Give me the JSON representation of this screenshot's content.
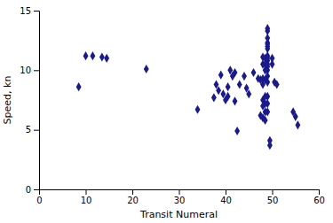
{
  "chart_data": {
    "type": "scatter",
    "xlabel": "Transit Numeral",
    "ylabel": "Speed, kn",
    "xlim": [
      0,
      60
    ],
    "ylim": [
      0,
      15
    ],
    "xticks": [
      0,
      10,
      20,
      30,
      40,
      50,
      60
    ],
    "yticks": [
      0,
      5,
      10,
      15
    ],
    "color": "#1a1a8c",
    "marker": "diamond",
    "grid": false,
    "x": [
      8.5,
      10.0,
      11.5,
      13.5,
      14.5,
      23.0,
      34.0,
      37.5,
      38.0,
      38.5,
      39.0,
      39.5,
      40.0,
      40.5,
      40.5,
      41.0,
      41.5,
      42.0,
      42.0,
      42.5,
      43.0,
      44.0,
      44.5,
      45.0,
      46.0,
      47.0,
      47.5,
      47.5,
      48.0,
      48.0,
      48.0,
      48.0,
      48.0,
      48.0,
      48.0,
      48.5,
      48.5,
      48.5,
      48.5,
      48.5,
      48.5,
      48.5,
      48.5,
      49.0,
      49.0,
      49.0,
      49.0,
      49.0,
      49.0,
      49.0,
      49.0,
      49.0,
      49.0,
      49.0,
      49.0,
      49.0,
      49.0,
      49.0,
      49.0,
      49.0,
      49.0,
      49.5,
      49.5,
      50.0,
      50.0,
      50.5,
      51.0,
      54.5,
      55.0,
      55.5
    ],
    "values": [
      8.6,
      11.2,
      11.2,
      11.1,
      11.0,
      10.1,
      6.7,
      7.7,
      8.8,
      8.3,
      9.6,
      8.0,
      7.5,
      7.8,
      8.6,
      10.0,
      9.5,
      9.8,
      7.4,
      4.9,
      8.8,
      9.5,
      8.5,
      8.0,
      9.8,
      9.3,
      9.2,
      6.2,
      11.1,
      10.5,
      9.3,
      8.8,
      7.5,
      7.0,
      6.0,
      11.0,
      10.5,
      10.0,
      9.2,
      7.8,
      7.2,
      6.5,
      5.8,
      13.5,
      13.3,
      12.7,
      12.3,
      12.2,
      12.0,
      11.8,
      11.2,
      11.0,
      10.8,
      10.5,
      10.3,
      10.0,
      9.5,
      9.0,
      7.8,
      7.2,
      6.5,
      4.1,
      3.7,
      11.0,
      10.5,
      9.0,
      8.8,
      6.5,
      6.1,
      5.4
    ]
  }
}
